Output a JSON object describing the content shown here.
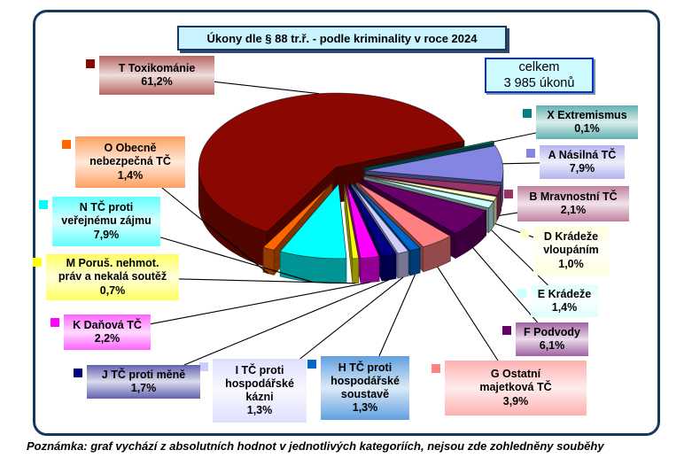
{
  "title": "Úkony dle § 88 tr.ř. - podle kriminality v roce 2024",
  "total_box": {
    "line1": "celkem",
    "line2": "3 985 úkonů"
  },
  "note": "Poznámka: graf vychází z absolutních hodnot v jednotlivých kategoriích, nejsou zde zohledněny souběhy",
  "colors": {
    "panel_border": "#17375E",
    "title_bg": "#C9F4FF",
    "total_bg": "#CFFBFF",
    "total_border": "#0031CC"
  },
  "chart_data": {
    "type": "pie",
    "projection": "3d-exploded",
    "title": "Úkony dle § 88 tr.ř. - podle kriminality v roce 2024",
    "total_label": "celkem 3 985 úkonů",
    "total_value": 3985,
    "unit": "%",
    "legend_position": "around-callouts",
    "start_angle_deg": 70.4,
    "slices": [
      {
        "code": "A",
        "label": "A Násilná TČ",
        "label_lines": "A Násilná TČ",
        "value": 7.9,
        "pct_label": "7,9%",
        "color": "#8484E3"
      },
      {
        "code": "B",
        "label": "B Mravnostní TČ",
        "label_lines": "B Mravnostní TČ",
        "value": 2.1,
        "pct_label": "2,1%",
        "color": "#993366"
      },
      {
        "code": "D",
        "label": "D Krádeže vloupáním",
        "label_lines": "D Krádeže\nvloupáním",
        "value": 1.0,
        "pct_label": "1,0%",
        "color": "#FFFFCC"
      },
      {
        "code": "E",
        "label": "E Krádeže",
        "label_lines": "E Krádeže",
        "value": 1.4,
        "pct_label": "1,4%",
        "color": "#CCFFFF"
      },
      {
        "code": "F",
        "label": "F Podvody",
        "label_lines": "F Podvody",
        "value": 6.1,
        "pct_label": "6,1%",
        "color": "#660066"
      },
      {
        "code": "G",
        "label": "G Ostatní majetková TČ",
        "label_lines": "G Ostatní\nmajetková TČ",
        "value": 3.9,
        "pct_label": "3,9%",
        "color": "#FF8080"
      },
      {
        "code": "H",
        "label": "H TČ proti hospodářské soustavě",
        "label_lines": "H TČ proti\nhospodářské\nsoustavě",
        "value": 1.3,
        "pct_label": "1,3%",
        "color": "#0066CC"
      },
      {
        "code": "I",
        "label": "I TČ proti hospodářské kázni",
        "label_lines": "I TČ proti\nhospodářské\nkázni",
        "value": 1.3,
        "pct_label": "1,3%",
        "color": "#CCCCFF"
      },
      {
        "code": "J",
        "label": "J TČ proti měně",
        "label_lines": "J TČ proti měně",
        "value": 1.7,
        "pct_label": "1,7%",
        "color": "#000080"
      },
      {
        "code": "K",
        "label": "K Daňová TČ",
        "label_lines": "K Daňová TČ",
        "value": 2.2,
        "pct_label": "2,2%",
        "color": "#FF00FF"
      },
      {
        "code": "M",
        "label": "M Poruš. nehmot. práv a nekalá soutěž",
        "label_lines": "M Poruš. nehmot.\npráv a nekalá soutěž",
        "value": 0.7,
        "pct_label": "0,7%",
        "color": "#FFFF00"
      },
      {
        "code": "N",
        "label": "N TČ proti veřejnému zájmu",
        "label_lines": "N TČ proti\nveřejnému zájmu",
        "value": 7.9,
        "pct_label": "7,9%",
        "color": "#00FFFF"
      },
      {
        "code": "O",
        "label": "O Obecně nebezpečná TČ",
        "label_lines": "O Obecně\nnebezpečná TČ",
        "value": 1.4,
        "pct_label": "1,4%",
        "color": "#FF6600"
      },
      {
        "code": "T",
        "label": "T Toxikománie",
        "label_lines": "T Toxikománie",
        "value": 61.2,
        "pct_label": "61,2%",
        "color": "#8B0802"
      },
      {
        "code": "X",
        "label": "X Extremismus",
        "label_lines": "X Extremismus",
        "value": 0.1,
        "pct_label": "0,1%",
        "color": "#008080"
      }
    ]
  }
}
